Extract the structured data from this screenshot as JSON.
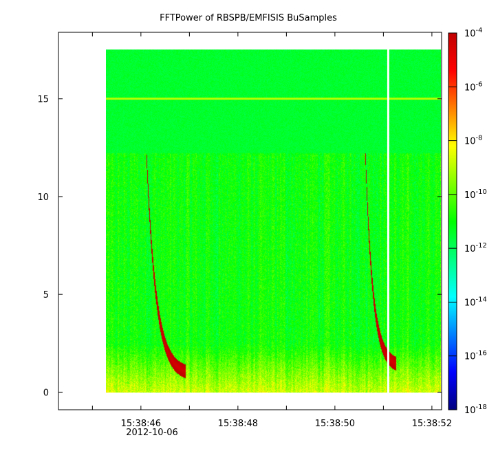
{
  "chart_data": {
    "type": "heatmap",
    "title": "FFTPower of RBSPB/EMFISIS  BuSamples",
    "date_label": "2012-10-06",
    "xlabel": "",
    "ylabel": "",
    "x_range": [
      "15:38:44.3",
      "15:38:52.2"
    ],
    "x_data_range": [
      "15:38:45.1",
      "15:38:52.2"
    ],
    "x_ticks": [
      "15:38:46",
      "15:38:48",
      "15:38:50",
      "15:38:52"
    ],
    "ylim": [
      -0.9,
      18.4
    ],
    "y_data_range": [
      0,
      17.5
    ],
    "y_ticks": [
      0,
      5,
      10,
      15
    ],
    "gap_at": "15:38:51.1",
    "colorbar": {
      "scale": "log",
      "range_exponents": [
        -18,
        -4
      ],
      "tick_exponents": [
        -4,
        -6,
        -8,
        -10,
        -12,
        -14,
        -16,
        -18
      ],
      "colors": [
        "#00007f",
        "#0000ff",
        "#0080ff",
        "#00ffff",
        "#00ff80",
        "#00ff00",
        "#80ff00",
        "#ffff00",
        "#ff8000",
        "#ff0000",
        "#c00000"
      ]
    },
    "features": {
      "background_level_exponent": -11,
      "upper_band_level_exponent": -11.5,
      "upper_band_from": 12.2,
      "line_at_15_exponent": -9,
      "chorus_elements": [
        {
          "start_time": "15:38:45.96",
          "start_freq": 12.2,
          "end_time": "15:38:46.6",
          "end_freq": 0.9,
          "peak_exponent": -4.5
        },
        {
          "start_time": "15:38:50.6",
          "start_freq": 12.2,
          "end_time": "15:38:51.1",
          "end_freq": 1.3,
          "peak_exponent": -4.5
        }
      ]
    }
  }
}
